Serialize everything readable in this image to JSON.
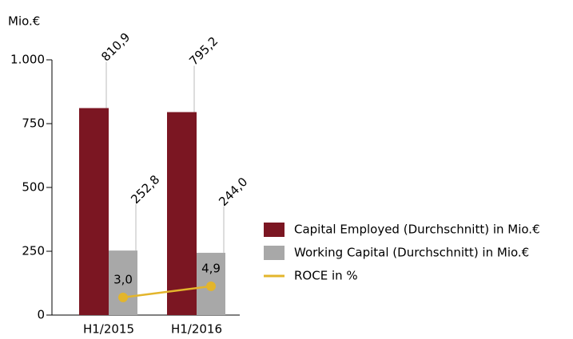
{
  "chart_data": {
    "type": "bar",
    "y_unit": "Mio.€",
    "categories": [
      "H1/2015",
      "H1/2016"
    ],
    "series": [
      {
        "name": "Capital Employed (Durchschnitt) in Mio.€",
        "color": "#7b1622",
        "values": [
          810.9,
          795.2
        ],
        "value_labels": [
          "810,9",
          "795,2"
        ]
      },
      {
        "name": "Working Capital (Durchschnitt) in Mio.€",
        "color": "#a8a8a8",
        "values": [
          252.8,
          244.0
        ],
        "value_labels": [
          "252,8",
          "244,0"
        ]
      },
      {
        "name": "ROCE in %",
        "type": "line",
        "axis": "y2",
        "color": "#e3b52c",
        "values": [
          3.0,
          4.9
        ],
        "value_labels": [
          "3,0",
          "4,9"
        ]
      }
    ],
    "ylim": [
      0,
      1000
    ],
    "yticks": [
      0,
      250,
      500,
      750,
      {
        "value": 1000,
        "label": "1.000"
      }
    ],
    "y2lim": [
      0,
      43.4
    ]
  }
}
